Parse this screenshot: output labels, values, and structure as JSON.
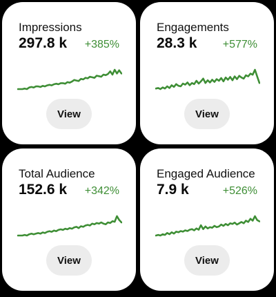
{
  "theme": {
    "line_color": "#3e8e35",
    "change_color": "#3e8e35",
    "button_bg": "#ececec"
  },
  "cards": [
    {
      "title": "Impressions",
      "value": "297.8 k",
      "change": "+385%",
      "button_label": "View",
      "sparkline": [
        1,
        1,
        1,
        2,
        1,
        4,
        5,
        4,
        6,
        6,
        5,
        7,
        6,
        8,
        9,
        8,
        10,
        11,
        10,
        12,
        12,
        11,
        14,
        13,
        15,
        18,
        17,
        16,
        20,
        19,
        22,
        21,
        24,
        23,
        22,
        26,
        25,
        24,
        28,
        27,
        29,
        34,
        28,
        37,
        30,
        36,
        30
      ]
    },
    {
      "title": "Engagements",
      "value": "28.3 k",
      "change": "+577%",
      "button_label": "View",
      "sparkline": [
        4,
        5,
        3,
        6,
        4,
        8,
        5,
        10,
        7,
        12,
        9,
        8,
        13,
        11,
        15,
        10,
        14,
        12,
        18,
        13,
        17,
        22,
        14,
        19,
        15,
        20,
        16,
        21,
        18,
        23,
        17,
        24,
        20,
        25,
        19,
        26,
        21,
        27,
        24,
        22,
        28,
        26,
        31,
        29,
        38,
        26,
        14
      ]
    },
    {
      "title": "Total Audience",
      "value": "152.6 k",
      "change": "+342%",
      "button_label": "View",
      "sparkline": [
        3,
        3,
        3,
        4,
        3,
        5,
        6,
        5,
        6,
        7,
        6,
        8,
        7,
        9,
        10,
        9,
        11,
        10,
        12,
        13,
        12,
        14,
        13,
        15,
        14,
        16,
        17,
        15,
        18,
        17,
        19,
        20,
        19,
        22,
        21,
        23,
        22,
        24,
        22,
        21,
        24,
        23,
        26,
        25,
        34,
        28,
        24
      ]
    },
    {
      "title": "Engaged Audience",
      "value": "7.9 k",
      "change": "+526%",
      "button_label": "View",
      "sparkline": [
        3,
        4,
        3,
        5,
        4,
        7,
        5,
        8,
        6,
        9,
        8,
        10,
        9,
        11,
        10,
        12,
        13,
        11,
        14,
        12,
        19,
        13,
        17,
        14,
        16,
        15,
        18,
        16,
        17,
        20,
        18,
        21,
        19,
        22,
        21,
        23,
        20,
        22,
        24,
        22,
        26,
        24,
        29,
        26,
        33,
        27,
        25
      ]
    }
  ]
}
